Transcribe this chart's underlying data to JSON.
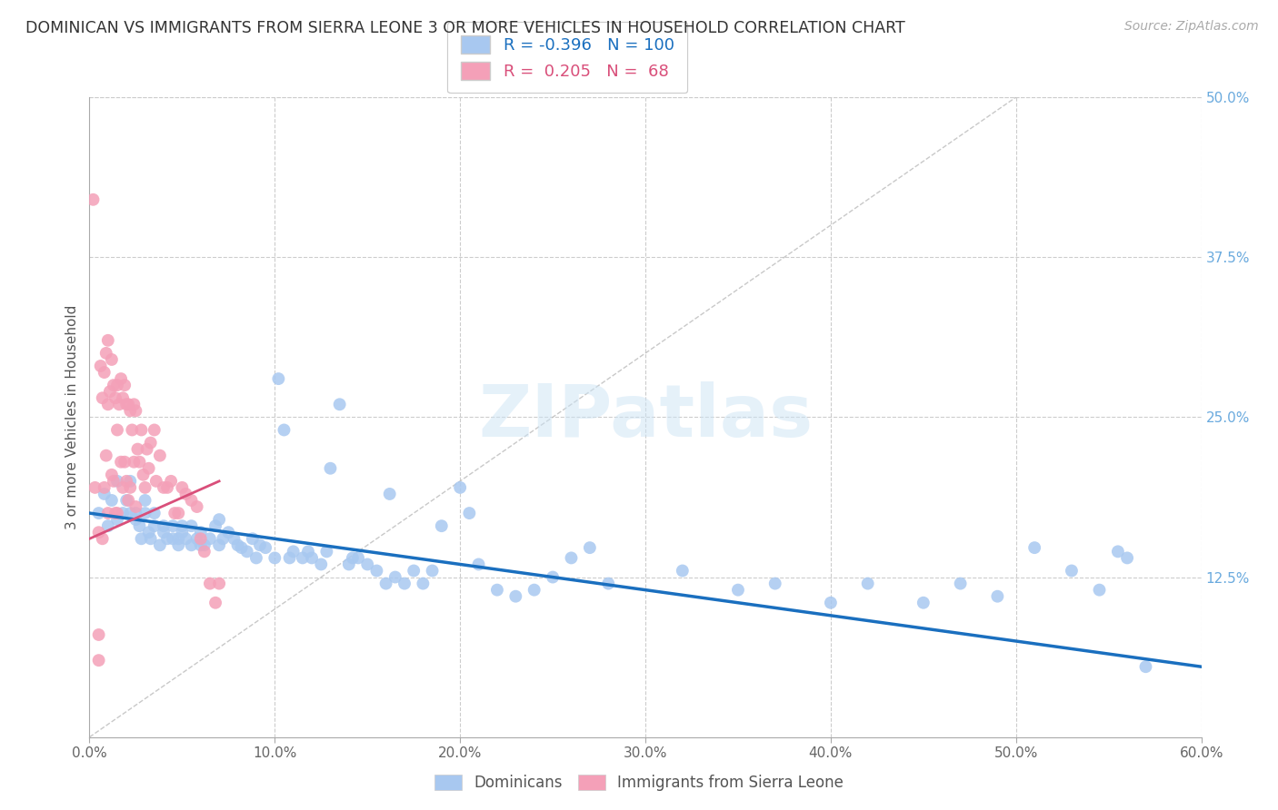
{
  "title": "DOMINICAN VS IMMIGRANTS FROM SIERRA LEONE 3 OR MORE VEHICLES IN HOUSEHOLD CORRELATION CHART",
  "source": "Source: ZipAtlas.com",
  "ylabel": "3 or more Vehicles in Household",
  "xlim": [
    0.0,
    0.6
  ],
  "ylim": [
    0.0,
    0.5
  ],
  "xticks": [
    0.0,
    0.1,
    0.2,
    0.3,
    0.4,
    0.5,
    0.6
  ],
  "yticks_right": [
    0.0,
    0.125,
    0.25,
    0.375,
    0.5
  ],
  "ytick_labels_right": [
    "",
    "12.5%",
    "25.0%",
    "37.5%",
    "50.0%"
  ],
  "xtick_labels": [
    "0.0%",
    "10.0%",
    "20.0%",
    "30.0%",
    "40.0%",
    "50.0%",
    "60.0%"
  ],
  "blue_R": -0.396,
  "blue_N": 100,
  "pink_R": 0.205,
  "pink_N": 68,
  "blue_label": "Dominicans",
  "pink_label": "Immigrants from Sierra Leone",
  "blue_color": "#A8C8F0",
  "pink_color": "#F4A0B8",
  "blue_trend_color": "#1A6FBF",
  "pink_trend_color": "#D94F7A",
  "watermark": "ZIPatlas",
  "background_color": "#ffffff",
  "grid_color": "#cccccc",
  "title_color": "#333333",
  "right_axis_color": "#6aaade",
  "blue_x": [
    0.005,
    0.008,
    0.01,
    0.012,
    0.015,
    0.015,
    0.018,
    0.02,
    0.022,
    0.022,
    0.025,
    0.025,
    0.027,
    0.028,
    0.03,
    0.03,
    0.032,
    0.033,
    0.035,
    0.035,
    0.038,
    0.04,
    0.04,
    0.042,
    0.045,
    0.045,
    0.048,
    0.048,
    0.05,
    0.05,
    0.052,
    0.055,
    0.055,
    0.058,
    0.06,
    0.06,
    0.062,
    0.065,
    0.068,
    0.07,
    0.07,
    0.072,
    0.075,
    0.078,
    0.08,
    0.082,
    0.085,
    0.088,
    0.09,
    0.092,
    0.095,
    0.1,
    0.102,
    0.105,
    0.108,
    0.11,
    0.115,
    0.118,
    0.12,
    0.125,
    0.128,
    0.13,
    0.135,
    0.14,
    0.142,
    0.145,
    0.15,
    0.155,
    0.16,
    0.162,
    0.165,
    0.17,
    0.175,
    0.18,
    0.185,
    0.19,
    0.2,
    0.205,
    0.21,
    0.22,
    0.23,
    0.24,
    0.25,
    0.26,
    0.27,
    0.28,
    0.32,
    0.35,
    0.37,
    0.4,
    0.42,
    0.45,
    0.47,
    0.49,
    0.51,
    0.53,
    0.545,
    0.555,
    0.56,
    0.57
  ],
  "blue_y": [
    0.175,
    0.19,
    0.165,
    0.185,
    0.17,
    0.2,
    0.175,
    0.185,
    0.175,
    0.2,
    0.17,
    0.175,
    0.165,
    0.155,
    0.175,
    0.185,
    0.16,
    0.155,
    0.165,
    0.175,
    0.15,
    0.165,
    0.16,
    0.155,
    0.165,
    0.155,
    0.155,
    0.15,
    0.16,
    0.165,
    0.155,
    0.165,
    0.15,
    0.155,
    0.15,
    0.16,
    0.15,
    0.155,
    0.165,
    0.17,
    0.15,
    0.155,
    0.16,
    0.155,
    0.15,
    0.148,
    0.145,
    0.155,
    0.14,
    0.15,
    0.148,
    0.14,
    0.28,
    0.24,
    0.14,
    0.145,
    0.14,
    0.145,
    0.14,
    0.135,
    0.145,
    0.21,
    0.26,
    0.135,
    0.14,
    0.14,
    0.135,
    0.13,
    0.12,
    0.19,
    0.125,
    0.12,
    0.13,
    0.12,
    0.13,
    0.165,
    0.195,
    0.175,
    0.135,
    0.115,
    0.11,
    0.115,
    0.125,
    0.14,
    0.148,
    0.12,
    0.13,
    0.115,
    0.12,
    0.105,
    0.12,
    0.105,
    0.12,
    0.11,
    0.148,
    0.13,
    0.115,
    0.145,
    0.14,
    0.055
  ],
  "pink_x": [
    0.002,
    0.003,
    0.005,
    0.005,
    0.005,
    0.006,
    0.007,
    0.007,
    0.008,
    0.008,
    0.009,
    0.009,
    0.01,
    0.01,
    0.01,
    0.011,
    0.012,
    0.012,
    0.013,
    0.013,
    0.014,
    0.014,
    0.015,
    0.015,
    0.015,
    0.016,
    0.017,
    0.017,
    0.018,
    0.018,
    0.019,
    0.019,
    0.02,
    0.02,
    0.021,
    0.021,
    0.022,
    0.022,
    0.023,
    0.024,
    0.024,
    0.025,
    0.025,
    0.026,
    0.027,
    0.028,
    0.029,
    0.03,
    0.031,
    0.032,
    0.033,
    0.035,
    0.036,
    0.038,
    0.04,
    0.042,
    0.044,
    0.046,
    0.048,
    0.05,
    0.052,
    0.055,
    0.058,
    0.06,
    0.062,
    0.065,
    0.068,
    0.07
  ],
  "pink_y": [
    0.42,
    0.195,
    0.16,
    0.08,
    0.06,
    0.29,
    0.265,
    0.155,
    0.285,
    0.195,
    0.3,
    0.22,
    0.31,
    0.26,
    0.175,
    0.27,
    0.295,
    0.205,
    0.275,
    0.2,
    0.265,
    0.175,
    0.275,
    0.24,
    0.175,
    0.26,
    0.28,
    0.215,
    0.265,
    0.195,
    0.275,
    0.215,
    0.26,
    0.2,
    0.26,
    0.185,
    0.255,
    0.195,
    0.24,
    0.26,
    0.215,
    0.255,
    0.18,
    0.225,
    0.215,
    0.24,
    0.205,
    0.195,
    0.225,
    0.21,
    0.23,
    0.24,
    0.2,
    0.22,
    0.195,
    0.195,
    0.2,
    0.175,
    0.175,
    0.195,
    0.19,
    0.185,
    0.18,
    0.155,
    0.145,
    0.12,
    0.105,
    0.12
  ]
}
